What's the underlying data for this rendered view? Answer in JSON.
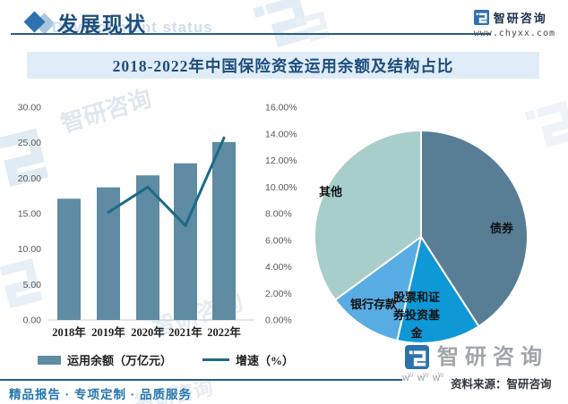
{
  "header": {
    "section_title": "发展现状",
    "section_subtitle_en": "Development status",
    "brand_name": "智研咨询",
    "brand_site": "www.chyxx.com"
  },
  "banner_title": "2018-2022年中国保险资金运用余额及结构占比",
  "chart_data": [
    {
      "type": "bar",
      "categories": [
        "2018年",
        "2019年",
        "2020年",
        "2021年",
        "2022年"
      ],
      "series": [
        {
          "name": "运用余额（万亿元）",
          "chart": "bar",
          "axis": "left",
          "values": [
            17.1,
            18.7,
            20.4,
            22.1,
            25.1
          ],
          "color": "#5f8ba3"
        },
        {
          "name": "增速（%）",
          "chart": "line",
          "axis": "right",
          "values": [
            null,
            8.1,
            10.0,
            7.1,
            13.7
          ],
          "color": "#1b6b89"
        }
      ],
      "left_axis": {
        "min": 0,
        "max": 30,
        "ticks": [
          "0.00",
          "5.00",
          "10.00",
          "15.00",
          "20.00",
          "25.00",
          "30.00"
        ]
      },
      "right_axis": {
        "min": 0,
        "max": 16,
        "ticks": [
          "0.00%",
          "2.00%",
          "4.00%",
          "6.00%",
          "8.00%",
          "10.00%",
          "12.00%",
          "14.00%",
          "16.00%"
        ]
      },
      "grid": false,
      "legend_position": "bottom"
    },
    {
      "type": "pie",
      "unit": "%",
      "start_angle_deg": 0,
      "direction": "clockwise",
      "labels": "inside",
      "segments": [
        {
          "label": "债券",
          "value": 40.9,
          "color": "#577e95"
        },
        {
          "label": "股票和证券投资基金",
          "value": 12.7,
          "color": "#0e98d5"
        },
        {
          "label": "银行存款",
          "value": 11.3,
          "color": "#57ace3"
        },
        {
          "label": "其他",
          "value": 35.1,
          "color": "#a8cecb"
        }
      ]
    }
  ],
  "footer": {
    "www_decor": "w w w .",
    "source": "资料来源：智研咨询",
    "brand_watermark": "智研咨询",
    "brand_watermark_www": "w w w .",
    "tagline": "精品报告 · 专项定制 · 品质服务"
  },
  "watermark_text": "智研咨询"
}
